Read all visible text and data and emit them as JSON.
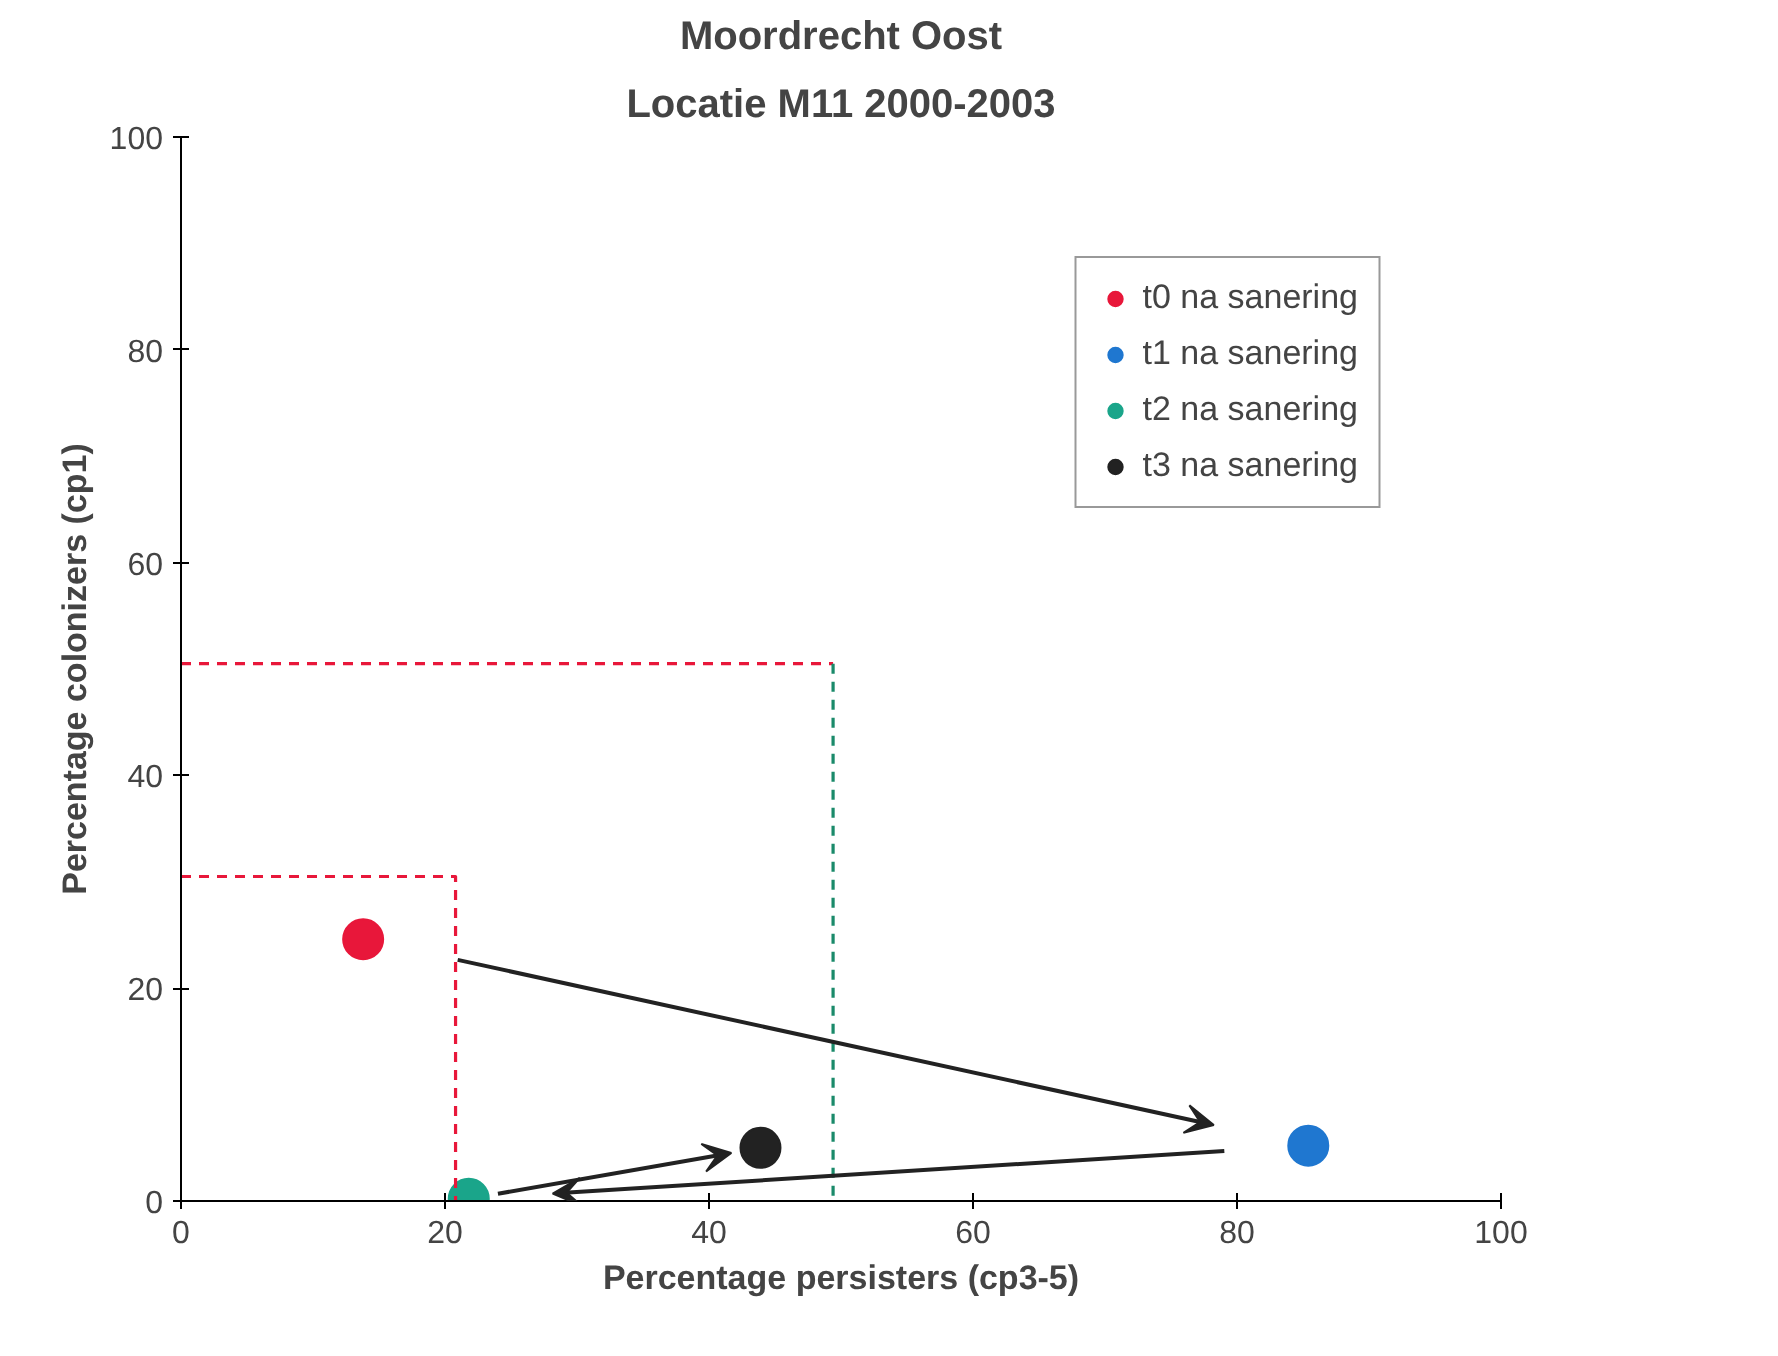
{
  "chart_data": {
    "type": "scatter",
    "title": "Moordrecht Oost",
    "subtitle": "Locatie M11 2000-2003",
    "xlabel": "Percentage persisters (cp3-5)",
    "ylabel": "Percentage colonizers (cp1)",
    "xlim": [
      0,
      100
    ],
    "ylim": [
      0,
      100
    ],
    "xticks": [
      0,
      20,
      40,
      60,
      80,
      100
    ],
    "yticks": [
      0,
      20,
      40,
      60,
      80,
      100
    ],
    "grid": false,
    "legend": "top right",
    "marker": "circle",
    "series": [
      {
        "name": "t0 na sanering",
        "color": "#e8173a",
        "x": [
          13.8
        ],
        "values": [
          24.6
        ]
      },
      {
        "name": "t1 na sanering",
        "color": "#1f77d0",
        "x": [
          85.4
        ],
        "values": [
          5.2
        ]
      },
      {
        "name": "t2 na sanering",
        "color": "#1aa58a",
        "x": [
          21.8
        ],
        "values": [
          0.2
        ]
      },
      {
        "name": "t3 na sanering",
        "color": "#222222",
        "x": [
          43.9
        ],
        "values": [
          5.0
        ]
      },
      {
        "type": "line",
        "marker": "none",
        "line_style": "dashed",
        "color": "#e8173a",
        "x": [
          0,
          20.8,
          20.8
        ],
        "values": [
          30.5,
          30.5,
          0
        ]
      },
      {
        "type": "line",
        "marker": "none",
        "line_style": "dashed",
        "color": "#e8173a",
        "x": [
          0,
          49.4
        ],
        "values": [
          50.5,
          50.5
        ]
      },
      {
        "type": "line",
        "marker": "none",
        "line_style": "dashed",
        "color": "#1a8a6a",
        "x": [
          49.4,
          49.4
        ],
        "values": [
          50.5,
          0
        ]
      }
    ]
  }
}
